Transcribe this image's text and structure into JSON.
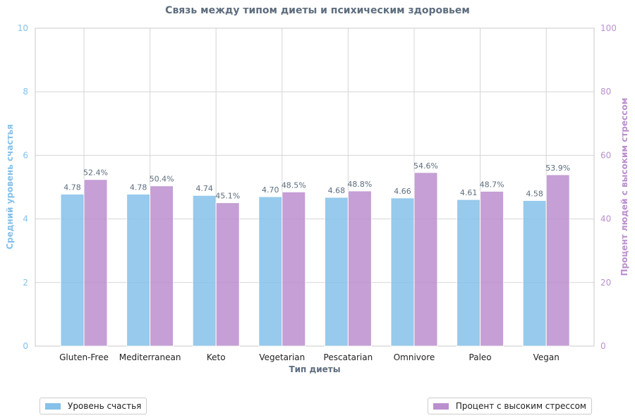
{
  "chart_data": {
    "type": "bar",
    "title": "Связь между типом диеты и психическим здоровьем",
    "xlabel": "Тип диеты",
    "ylabel": "Средний уровень счастья",
    "ylabel_right": "Процент людей с высоким стрессом",
    "ylim": [
      0,
      10
    ],
    "ylim_right": [
      0,
      100
    ],
    "yticks": [
      "0",
      "2",
      "4",
      "6",
      "8",
      "10"
    ],
    "yticks_right": [
      "0",
      "20",
      "40",
      "60",
      "80",
      "100"
    ],
    "categories": [
      "Gluten-Free",
      "Mediterranean",
      "Keto",
      "Vegetarian",
      "Pescatarian",
      "Omnivore",
      "Paleo",
      "Vegan"
    ],
    "series": [
      {
        "name": "Уровень счастья",
        "axis": "left",
        "color": "#85C1E9",
        "values": [
          4.78,
          4.78,
          4.74,
          4.7,
          4.68,
          4.66,
          4.61,
          4.58
        ],
        "labels": [
          "4.78",
          "4.78",
          "4.74",
          "4.70",
          "4.68",
          "4.66",
          "4.61",
          "4.58"
        ]
      },
      {
        "name": "Процент с высоким стрессом",
        "axis": "right",
        "color": "#BB8FCE",
        "values": [
          52.4,
          50.4,
          45.1,
          48.5,
          48.8,
          54.6,
          48.7,
          53.9
        ],
        "labels": [
          "52.4%",
          "50.4%",
          "45.1%",
          "48.5%",
          "48.8%",
          "54.6%",
          "48.7%",
          "53.9%"
        ]
      }
    ],
    "grid": true,
    "legend": [
      "bottom-left",
      "bottom-right"
    ]
  }
}
